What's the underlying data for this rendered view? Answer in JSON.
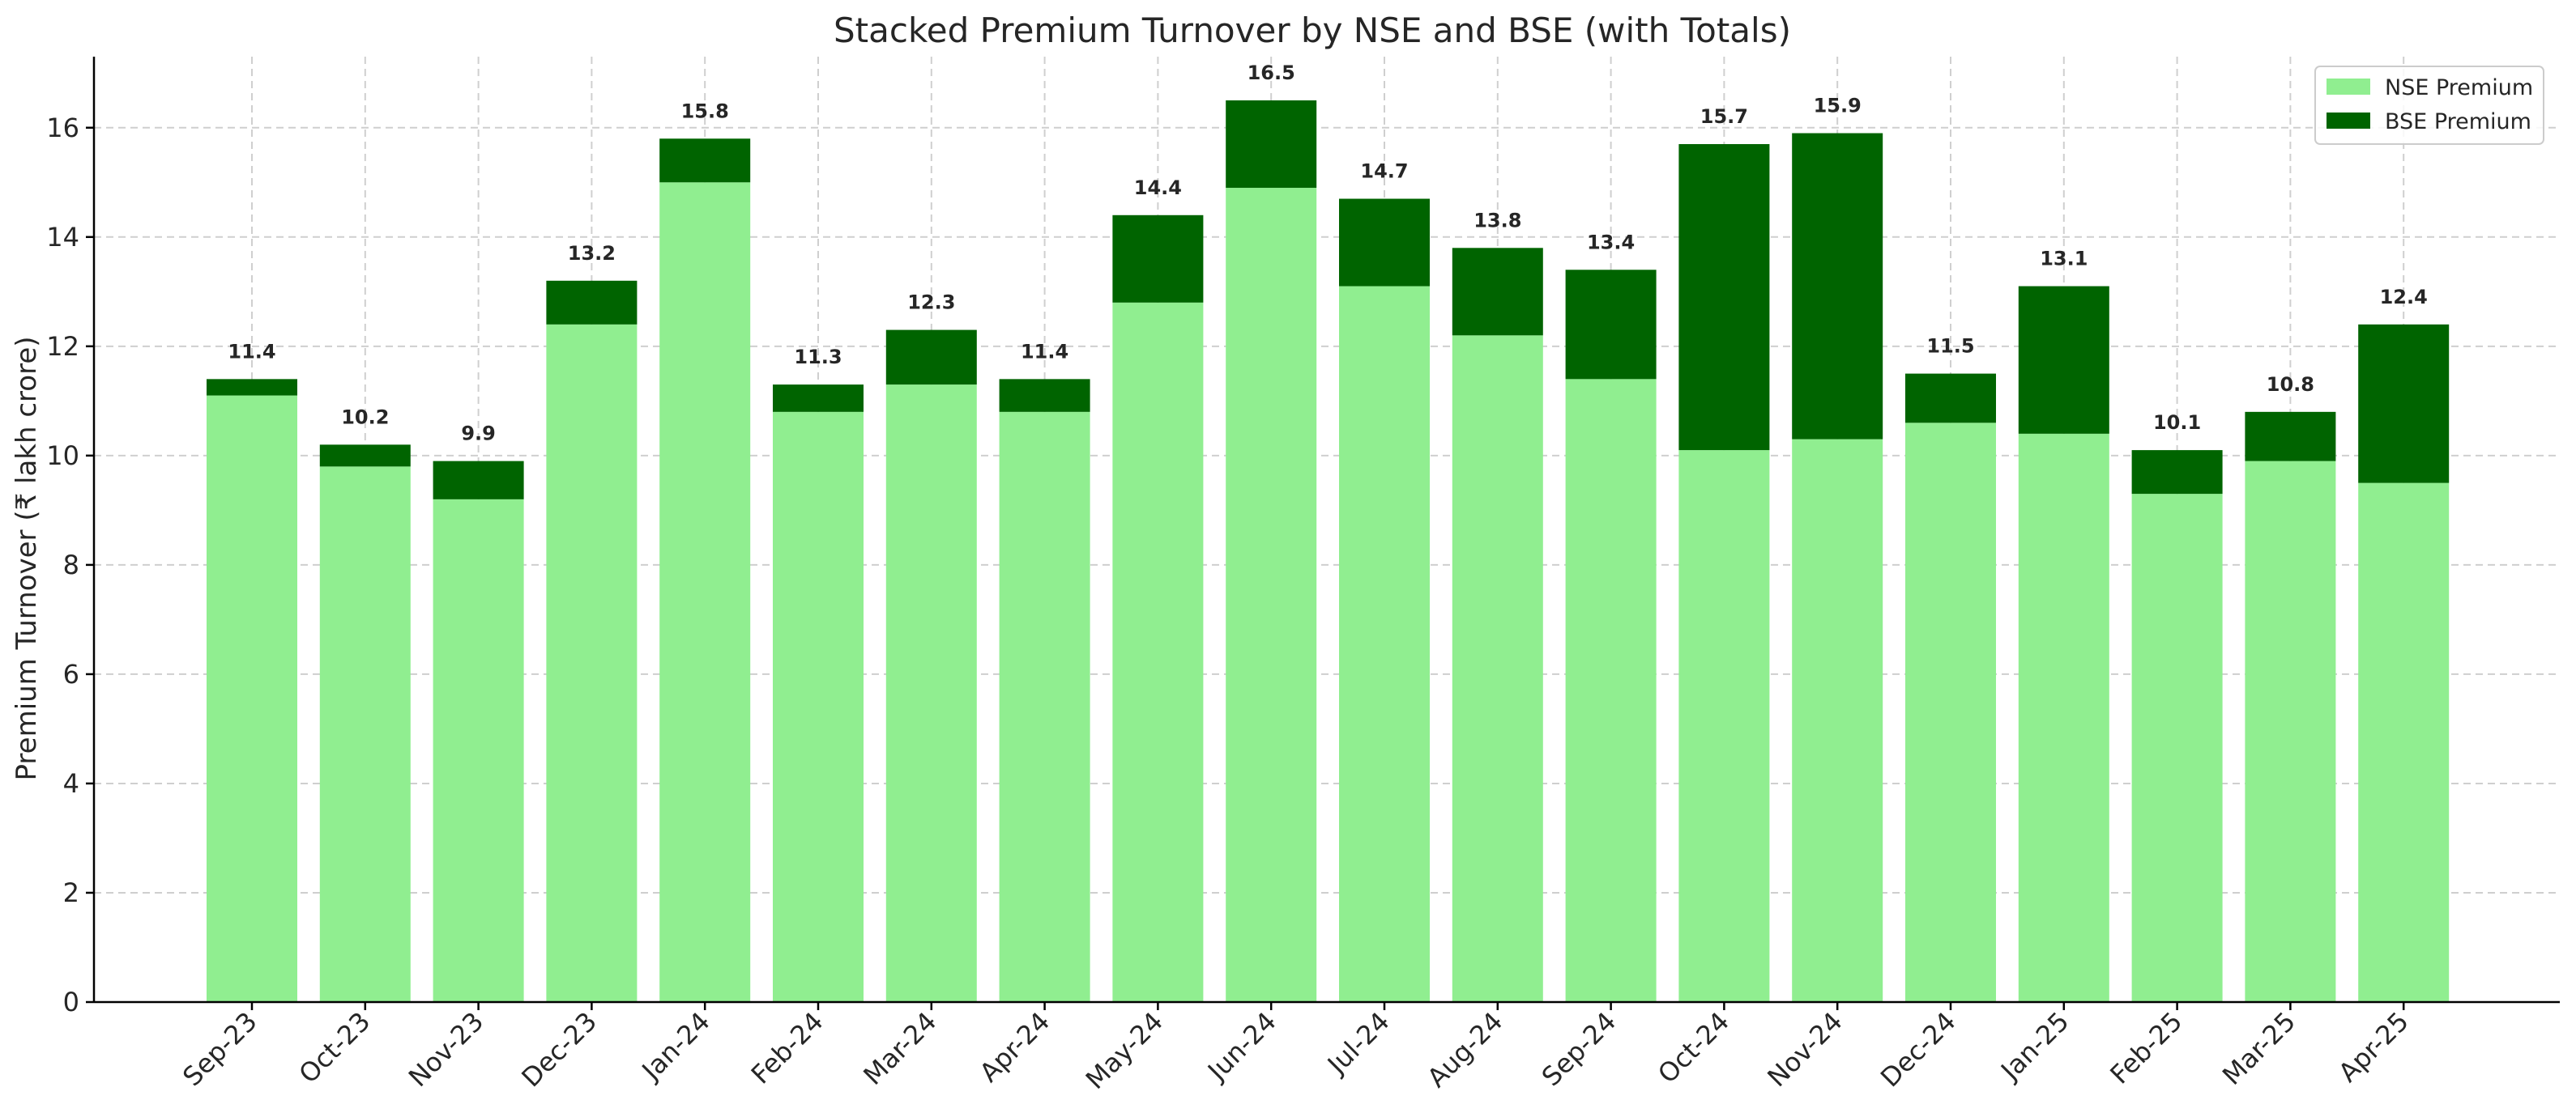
{
  "colors": {
    "nse": "#90ee90",
    "bse": "#006400"
  },
  "chart_data": {
    "type": "bar",
    "stacked": true,
    "title": "Stacked Premium Turnover by NSE and BSE (with Totals)",
    "xlabel": "",
    "ylabel": "Premium Turnover (₹ lakh crore)",
    "ylim": [
      0,
      17.3
    ],
    "yticks": [
      0,
      2,
      4,
      6,
      8,
      10,
      12,
      14,
      16
    ],
    "grid": true,
    "legend_position": "top-right",
    "categories": [
      "Sep-23",
      "Oct-23",
      "Nov-23",
      "Dec-23",
      "Jan-24",
      "Feb-24",
      "Mar-24",
      "Apr-24",
      "May-24",
      "Jun-24",
      "Jul-24",
      "Aug-24",
      "Sep-24",
      "Oct-24",
      "Nov-24",
      "Dec-24",
      "Jan-25",
      "Feb-25",
      "Mar-25",
      "Apr-25"
    ],
    "series": [
      {
        "name": "NSE Premium",
        "values": [
          11.1,
          9.8,
          9.2,
          12.4,
          15.0,
          10.8,
          11.3,
          10.8,
          12.8,
          14.9,
          13.1,
          12.2,
          11.4,
          10.1,
          10.3,
          10.6,
          10.4,
          9.3,
          9.9,
          9.5
        ]
      },
      {
        "name": "BSE Premium",
        "values": [
          0.3,
          0.4,
          0.7,
          0.8,
          0.8,
          0.5,
          1.0,
          0.6,
          1.6,
          1.6,
          1.6,
          1.6,
          2.0,
          5.6,
          5.6,
          0.9,
          2.7,
          0.8,
          0.9,
          2.9
        ]
      }
    ],
    "totals": [
      "11.4",
      "10.2",
      "9.9",
      "13.2",
      "15.8",
      "11.3",
      "12.3",
      "11.4",
      "14.4",
      "16.5",
      "14.7",
      "13.8",
      "13.4",
      "15.7",
      "15.9",
      "11.5",
      "13.1",
      "10.1",
      "10.8",
      "12.4"
    ]
  }
}
